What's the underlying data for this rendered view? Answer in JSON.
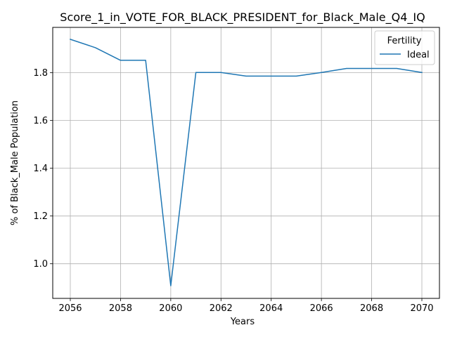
{
  "chart_data": {
    "type": "line",
    "title": "Score_1_in_VOTE_FOR_BLACK_PRESIDENT_for_Black_Male_Q4_IQ",
    "xlabel": "Years",
    "ylabel": "% of Black_Male Population",
    "x": [
      2056,
      2057,
      2058,
      2059,
      2060,
      2061,
      2062,
      2063,
      2064,
      2065,
      2066,
      2067,
      2068,
      2069,
      2070
    ],
    "series": [
      {
        "name": "Ideal",
        "color": "#1f77b4",
        "values": [
          1.94,
          1.905,
          1.852,
          1.852,
          0.908,
          1.801,
          1.801,
          1.786,
          1.786,
          1.786,
          1.801,
          1.818,
          1.818,
          1.818,
          1.801
        ]
      }
    ],
    "xlim": [
      2055.3,
      2070.7
    ],
    "ylim": [
      0.855,
      1.99
    ],
    "xticks": [
      2056,
      2058,
      2060,
      2062,
      2064,
      2066,
      2068,
      2070
    ],
    "yticks": [
      1.0,
      1.2,
      1.4,
      1.6,
      1.8
    ],
    "ytick_labels": [
      "1.0",
      "1.2",
      "1.4",
      "1.6",
      "1.8"
    ],
    "grid": true,
    "legend": {
      "title": "Fertility",
      "placement": "upper right"
    }
  }
}
